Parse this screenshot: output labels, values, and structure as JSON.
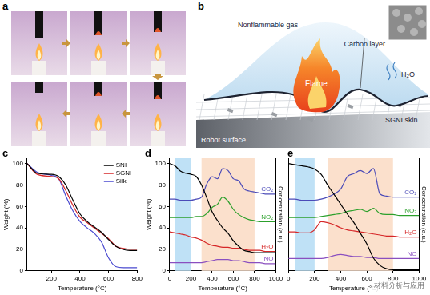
{
  "panels": {
    "a": {
      "label": "a"
    },
    "b": {
      "label": "b",
      "texts": {
        "gas": "Nonflammable gas",
        "carbon": "Carbon layer",
        "flame": "Flame",
        "water": "H₂O",
        "skin": "SGNI skin",
        "robot": "Robot surface"
      }
    }
  },
  "watermark": "材料分析与应用",
  "chart_data": [
    {
      "label": "c",
      "type": "line",
      "xlabel": "Temperature (°C)",
      "ylabel": "Weight (%)",
      "xlim": [
        30,
        800
      ],
      "xticks": [
        200,
        400,
        600,
        800
      ],
      "ylim": [
        0,
        105
      ],
      "yticks": [
        0,
        20,
        40,
        60,
        80,
        100
      ],
      "grid": false,
      "legend": "upper right",
      "x": [
        30,
        100,
        200,
        250,
        300,
        350,
        400,
        450,
        500,
        550,
        600,
        650,
        700,
        750,
        800
      ],
      "series": [
        {
          "name": "SNI",
          "color": "#000000",
          "values": [
            100,
            91,
            90,
            88,
            80,
            66,
            53,
            46,
            41,
            36,
            29,
            23,
            20,
            19,
            19
          ]
        },
        {
          "name": "SGNI",
          "color": "#d62728",
          "values": [
            100,
            90,
            88,
            86,
            75,
            61,
            50,
            45,
            40,
            35,
            30,
            23,
            21,
            20,
            20
          ]
        },
        {
          "name": "Silk",
          "color": "#4a4ad0",
          "values": [
            100,
            92,
            89,
            86,
            70,
            56,
            46,
            40,
            35,
            27,
            12,
            4,
            3,
            3,
            3
          ]
        }
      ]
    },
    {
      "label": "d",
      "type": "line",
      "xlabel": "Temperature (°C)",
      "ylabel": "Weight (%)",
      "y2label": "Concentration (a.u.)",
      "xlim": [
        0,
        1000
      ],
      "xticks": [
        0,
        200,
        400,
        600,
        800,
        1000
      ],
      "ylim": [
        0,
        105
      ],
      "yticks": [
        0,
        20,
        40,
        60,
        80,
        100
      ],
      "y2lim": [
        0,
        110
      ],
      "y2ticks": [],
      "grid": false,
      "regions": [
        {
          "from": 50,
          "to": 200,
          "color": "#bfe1f6"
        },
        {
          "from": 300,
          "to": 800,
          "color": "#fbe0cc"
        }
      ],
      "x": [
        0,
        50,
        100,
        150,
        200,
        250,
        300,
        350,
        400,
        450,
        500,
        550,
        600,
        650,
        700,
        750,
        800,
        850,
        900,
        950,
        1000
      ],
      "series": [
        {
          "color": "#000000",
          "values": [
            100,
            98,
            93,
            91,
            90,
            88,
            80,
            68,
            55,
            47,
            40,
            35,
            28,
            23,
            19,
            18,
            17,
            17,
            17,
            17,
            17
          ]
        },
        {
          "name": "CO₂",
          "color": "#4b4bb8",
          "axis": "y2",
          "values": [
            70,
            70,
            69,
            69,
            69,
            70,
            72,
            85,
            92,
            90,
            100,
            98,
            90,
            88,
            80,
            78,
            77,
            76,
            75,
            75,
            75
          ]
        },
        {
          "name": "NO₂",
          "color": "#2ca02c",
          "axis": "y2",
          "values": [
            52,
            52,
            52,
            52,
            52,
            53,
            53,
            56,
            62,
            65,
            72,
            68,
            60,
            55,
            52,
            50,
            49,
            48,
            48,
            48,
            48
          ]
        },
        {
          "name": "H₂O",
          "color": "#d62728",
          "axis": "y2",
          "values": [
            38,
            37,
            36,
            35,
            33,
            32,
            30,
            27,
            25,
            24,
            23,
            23,
            22,
            22,
            21,
            20,
            20,
            20,
            19,
            19,
            19
          ]
        },
        {
          "name": "NO",
          "color": "#8a4fc0",
          "axis": "y2",
          "values": [
            8,
            8,
            8,
            8,
            8,
            8,
            8,
            9,
            10,
            11,
            11,
            11,
            10,
            10,
            9,
            8,
            8,
            8,
            7,
            7,
            7
          ]
        }
      ]
    },
    {
      "label": "e",
      "type": "line",
      "xlabel": "Temperature (°C)",
      "y2label": "Concentration (a.u.)",
      "xlim": [
        0,
        1000
      ],
      "xticks": [
        0,
        200,
        400,
        600,
        800,
        1000
      ],
      "ylim": [
        0,
        105
      ],
      "yticks": [],
      "y2lim": [
        0,
        110
      ],
      "y2ticks": [],
      "grid": false,
      "regions": [
        {
          "from": 50,
          "to": 200,
          "color": "#bfe1f6"
        },
        {
          "from": 300,
          "to": 800,
          "color": "#fbe0cc"
        }
      ],
      "x": [
        0,
        50,
        100,
        150,
        200,
        250,
        300,
        350,
        400,
        450,
        500,
        550,
        600,
        650,
        700,
        750,
        800,
        850,
        900,
        950,
        1000
      ],
      "series": [
        {
          "color": "#000000",
          "values": [
            100,
            99,
            98,
            97,
            95,
            90,
            80,
            71,
            62,
            53,
            45,
            35,
            25,
            12,
            5,
            2,
            1,
            1,
            1,
            1,
            1
          ]
        },
        {
          "name": "CO₂",
          "color": "#4b4bb8",
          "axis": "y2",
          "values": [
            70,
            70,
            69,
            69,
            69,
            70,
            72,
            75,
            80,
            92,
            95,
            98,
            95,
            100,
            75,
            73,
            72,
            72,
            72,
            72,
            72
          ]
        },
        {
          "name": "NO₂",
          "color": "#2ca02c",
          "axis": "y2",
          "values": [
            52,
            52,
            52,
            52,
            52,
            53,
            54,
            55,
            56,
            58,
            59,
            60,
            58,
            61,
            56,
            55,
            55,
            54,
            54,
            54,
            54
          ]
        },
        {
          "name": "H₂O",
          "color": "#d62728",
          "axis": "y2",
          "values": [
            38,
            38,
            37,
            37,
            40,
            48,
            47,
            45,
            42,
            40,
            39,
            38,
            37,
            36,
            35,
            34,
            34,
            33,
            33,
            33,
            33
          ]
        },
        {
          "name": "NO",
          "color": "#8a4fc0",
          "axis": "y2",
          "values": [
            12,
            12,
            12,
            12,
            12,
            12,
            13,
            15,
            16,
            15,
            14,
            14,
            13,
            13,
            12,
            12,
            12,
            12,
            12,
            12,
            12
          ]
        }
      ]
    }
  ]
}
